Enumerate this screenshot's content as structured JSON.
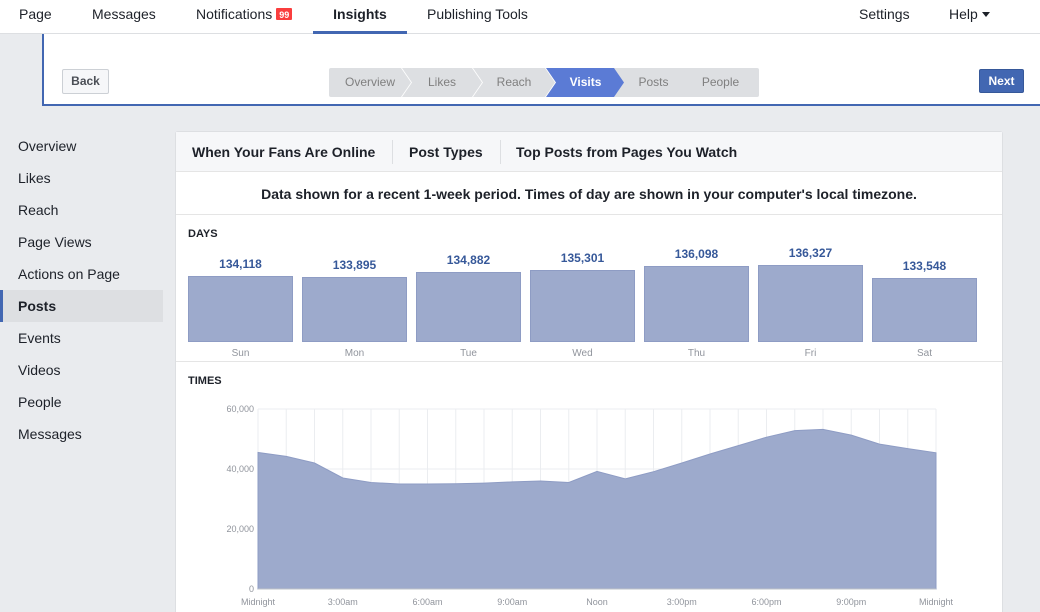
{
  "topnav": {
    "items": [
      {
        "label": "Page"
      },
      {
        "label": "Messages"
      },
      {
        "label": "Notifications",
        "badge": "99"
      },
      {
        "label": "Insights",
        "active": true
      },
      {
        "label": "Publishing Tools"
      }
    ],
    "settings": "Settings",
    "help": "Help"
  },
  "wizard": {
    "back": "Back",
    "next": "Next",
    "steps": [
      {
        "label": "Overview"
      },
      {
        "label": "Likes"
      },
      {
        "label": "Reach"
      },
      {
        "label": "Visits",
        "active": true
      },
      {
        "label": "Posts"
      },
      {
        "label": "People"
      }
    ]
  },
  "sidebar": {
    "items": [
      {
        "label": "Overview"
      },
      {
        "label": "Likes"
      },
      {
        "label": "Reach"
      },
      {
        "label": "Page Views"
      },
      {
        "label": "Actions on Page"
      },
      {
        "label": "Posts",
        "active": true
      },
      {
        "label": "Events"
      },
      {
        "label": "Videos"
      },
      {
        "label": "People"
      },
      {
        "label": "Messages"
      }
    ]
  },
  "panel": {
    "tabs": [
      {
        "label": "When Your Fans Are Online",
        "active": true
      },
      {
        "label": "Post Types"
      },
      {
        "label": "Top Posts from Pages You Watch"
      }
    ],
    "notice": "Data shown for a recent 1-week period. Times of day are shown in your computer's local timezone.",
    "days_title": "DAYS",
    "times_title": "TIMES"
  },
  "chart_data": [
    {
      "type": "bar",
      "title": "DAYS",
      "categories": [
        "Sun",
        "Mon",
        "Tue",
        "Wed",
        "Thu",
        "Fri",
        "Sat"
      ],
      "values": [
        134118,
        133895,
        134882,
        135301,
        136098,
        136327,
        133548
      ],
      "value_labels": [
        "134,118",
        "133,895",
        "134,882",
        "135,301",
        "136,098",
        "136,327",
        "133,548"
      ]
    },
    {
      "type": "area",
      "title": "TIMES",
      "x_hours": [
        0,
        1,
        2,
        3,
        4,
        5,
        6,
        7,
        8,
        9,
        10,
        11,
        12,
        13,
        14,
        15,
        16,
        17,
        18,
        19,
        20,
        21,
        22,
        23,
        24
      ],
      "values": [
        45500,
        44200,
        42000,
        37000,
        35500,
        35000,
        35000,
        35100,
        35300,
        35700,
        36000,
        35500,
        39200,
        36700,
        39100,
        42000,
        45000,
        47800,
        50600,
        52800,
        53200,
        51300,
        48300,
        46800,
        45400
      ],
      "ylim": [
        0,
        60000
      ],
      "y_ticks": [
        0,
        20000,
        40000,
        60000
      ],
      "y_tick_labels": [
        "0",
        "20,000",
        "40,000",
        "60,000"
      ],
      "x_tick_labels": [
        "Midnight",
        "3:00am",
        "6:00am",
        "9:00am",
        "Noon",
        "3:00pm",
        "6:00pm",
        "9:00pm",
        "Midnight"
      ],
      "grid": true,
      "color": "#9daacc"
    }
  ]
}
